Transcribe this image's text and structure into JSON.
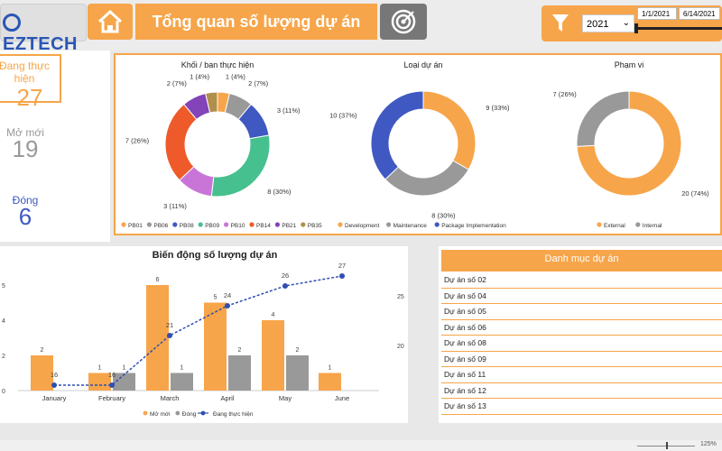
{
  "header": {
    "logo": "EZTECH",
    "title": "Tổng quan số lượng dự án"
  },
  "filters": {
    "year": "2021",
    "date_from": "1/1/2021",
    "date_to": "6/14/2021"
  },
  "kpis": {
    "dang_label": "Đang thực hiện",
    "dang_value": "27",
    "moi_label": "Mở mới",
    "moi_value": "19",
    "dong_label": "Đóng",
    "dong_value": "6"
  },
  "colors": {
    "accent": "#f7a54a",
    "gray": "#999999",
    "blue": "#3f58c2",
    "line": "#2e4fb0"
  },
  "chart_data": [
    {
      "type": "pie",
      "title": "Khối / ban thực hiện",
      "labels": [
        "PB01",
        "PB06",
        "PB08",
        "PB09",
        "PB10",
        "PB14",
        "PB21",
        "PB35"
      ],
      "values": [
        1,
        2,
        3,
        8,
        3,
        7,
        2,
        1
      ],
      "data_labels": [
        "1 (4%)",
        "2 (7%)",
        "3 (11%)",
        "8 (30%)",
        "3 (11%)",
        "7 (26%)",
        "2 (7%)",
        "1 (4%)"
      ],
      "colors": [
        "#f7a54a",
        "#999999",
        "#3f58c2",
        "#46c08e",
        "#c975d8",
        "#ee5a2a",
        "#8244b8",
        "#b08f4c"
      ]
    },
    {
      "type": "pie",
      "title": "Loại dự án",
      "labels": [
        "Development",
        "Maintenance",
        "Package Implementation"
      ],
      "values": [
        9,
        8,
        10
      ],
      "data_labels": [
        "9 (33%)",
        "8 (30%)",
        "10 (37%)"
      ],
      "colors": [
        "#f7a54a",
        "#999999",
        "#3f58c2"
      ]
    },
    {
      "type": "pie",
      "title": "Phạm vi",
      "labels": [
        "External",
        "Internal"
      ],
      "values": [
        20,
        7
      ],
      "data_labels": [
        "20 (74%)",
        "7 (26%)"
      ],
      "colors": [
        "#f7a54a",
        "#999999"
      ]
    },
    {
      "type": "bar",
      "title": "Biến động số lượng dự án",
      "categories": [
        "January",
        "February",
        "March",
        "April",
        "May",
        "June"
      ],
      "series": [
        {
          "name": "Mở mới",
          "values": [
            2,
            1,
            6,
            5,
            4,
            1
          ],
          "color": "#f7a54a"
        },
        {
          "name": "Đóng",
          "values": [
            0,
            1,
            1,
            2,
            2,
            0
          ],
          "color": "#999999"
        },
        {
          "name": "Đang thực hiện",
          "values": [
            16,
            16,
            21,
            24,
            26,
            27
          ],
          "color": "#2e4fb0"
        }
      ],
      "left_ticks": [
        "0",
        "2",
        "4",
        "5"
      ],
      "right_ticks": [
        "20",
        "25"
      ]
    }
  ],
  "project_list": {
    "header": "Danh mục dự án",
    "items": [
      "Dự án số 02",
      "Dự án số 04",
      "Dự án số 05",
      "Dự án số 06",
      "Dự án số 08",
      "Dự án số 09",
      "Dự án số 11",
      "Dự án số 12",
      "Dự án số 13"
    ]
  },
  "status": {
    "zoom": "125%"
  }
}
